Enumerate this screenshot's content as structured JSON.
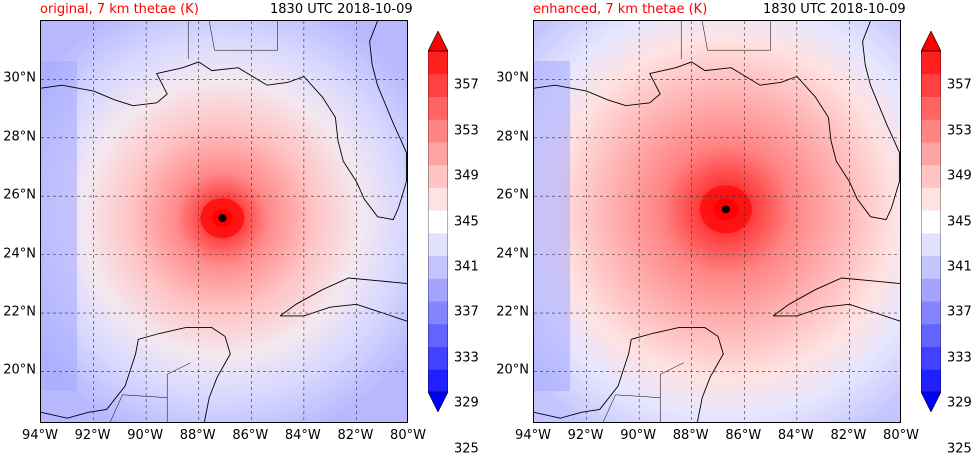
{
  "panels": [
    {
      "id": "original",
      "title_left": "original, 7 km thetae (K)",
      "title_right": "1830 UTC 2018-10-09",
      "center": {
        "lon": -87.1,
        "lat": 25.25
      }
    },
    {
      "id": "enhanced",
      "title_left": "enhanced, 7 km thetae (K)",
      "title_right": "1830 UTC 2018-10-09",
      "center": {
        "lon": -86.7,
        "lat": 25.55
      }
    }
  ],
  "x_ticks": [
    "94°W",
    "92°W",
    "90°W",
    "88°W",
    "86°W",
    "84°W",
    "82°W",
    "80°W"
  ],
  "y_ticks": [
    "30°N",
    "28°N",
    "26°N",
    "24°N",
    "22°N",
    "20°N"
  ],
  "colorbar": {
    "labels": [
      "357",
      "353",
      "349",
      "345",
      "341",
      "337",
      "333",
      "329",
      "325"
    ],
    "colors": [
      "#0000ff",
      "#2020ff",
      "#4141ff",
      "#6363ff",
      "#8484ff",
      "#a4a4ff",
      "#c4c4ff",
      "#e2e2ff",
      "#ffffff",
      "#ffe2e2",
      "#ffc4c4",
      "#ffa4a4",
      "#ff8484",
      "#ff6363",
      "#ff4141",
      "#ff2020",
      "#ff0000"
    ]
  },
  "extent": {
    "lon": [
      -94,
      -80
    ],
    "lat": [
      18.2,
      32.0
    ]
  }
}
